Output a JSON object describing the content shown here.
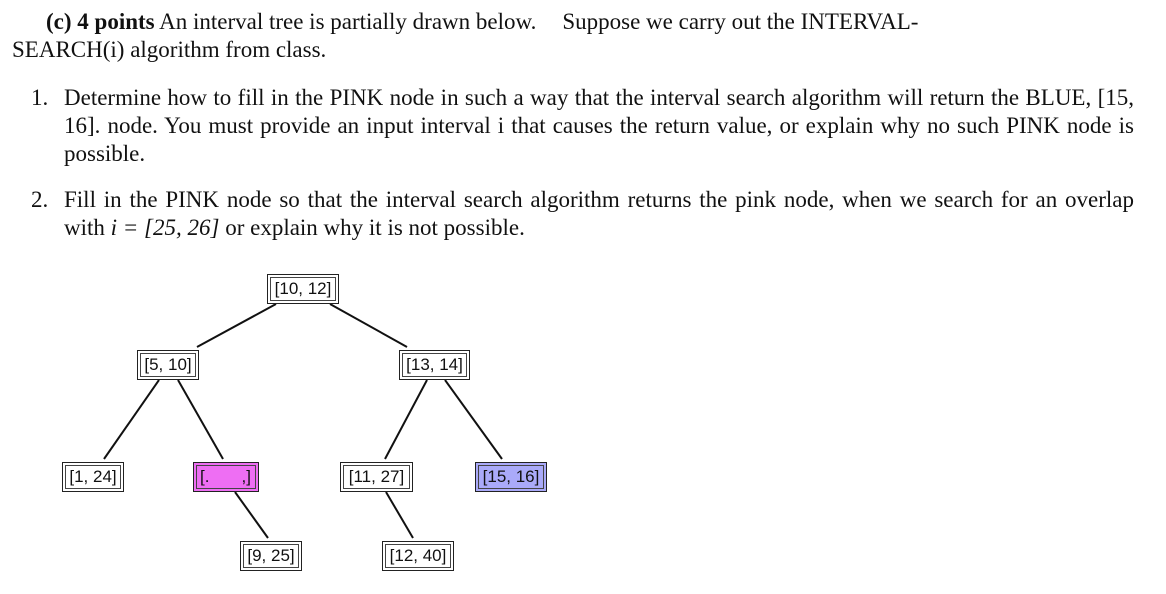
{
  "problem": {
    "label": "(c)",
    "points": "4 points",
    "intro_line1_a": "An interval tree is partially drawn below.",
    "intro_line1_b": "Suppose we carry out the INTERVAL-",
    "intro_line2": "SEARCH(i) algorithm from class."
  },
  "questions": [
    {
      "number": "1.",
      "text": "Determine how to fill in the PINK node in such a way that the interval search algorithm will return the BLUE, [15, 16]. node. You must provide an input interval i that causes the return value, or explain why no such PINK node is possible."
    },
    {
      "number": "2.",
      "text_before": "Fill in the PINK node so that the interval search algorithm returns the pink node, when we search for an overlap with ",
      "math": "i = [25, 26]",
      "text_after": " or explain why it is not possible."
    }
  ],
  "tree": {
    "nodes": {
      "root": "[10, 12]",
      "left": "[5, 10]",
      "right": "[13, 14]",
      "left_left": "[1, 24]",
      "pink_open": "[.",
      "pink_close": ",]",
      "right_left": "[11, 27]",
      "right_right": "[15, 16]",
      "pink_right": "[9, 25]",
      "right_left_child": "[12, 40]"
    },
    "colors": {
      "pink": "#ee6ef3",
      "blue": "#aaaaf9",
      "edge": "#111111"
    }
  }
}
